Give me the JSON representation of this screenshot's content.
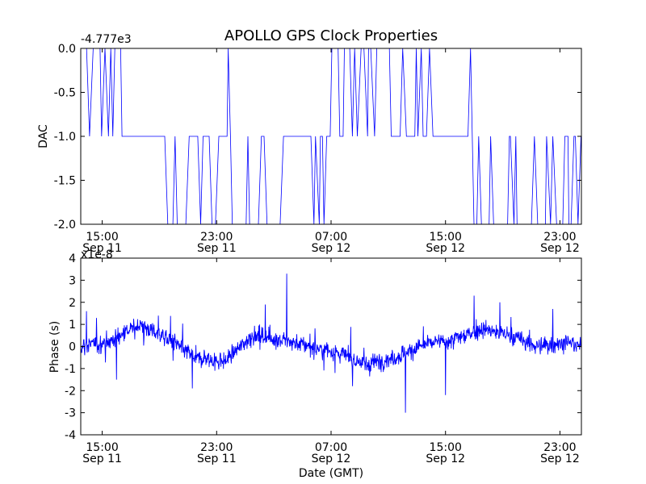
{
  "figure": {
    "title": "APOLLO GPS Clock Properties",
    "xlabel": "Date (GMT)"
  },
  "chart_data": [
    {
      "type": "line",
      "ylabel": "DAC",
      "offset_label": "-4.777e3",
      "ylim": [
        -2.0,
        0.0
      ],
      "xlim_hours": [
        -1.5,
        33.5
      ],
      "x_ticks": [
        {
          "hour": 0,
          "time": "15:00",
          "date": "Sep 11"
        },
        {
          "hour": 8,
          "time": "23:00",
          "date": "Sep 11"
        },
        {
          "hour": 16,
          "time": "07:00",
          "date": "Sep 12"
        },
        {
          "hour": 24,
          "time": "15:00",
          "date": "Sep 12"
        },
        {
          "hour": 32,
          "time": "23:00",
          "date": "Sep 12"
        }
      ],
      "y_ticks": [
        "0.0",
        "-0.5",
        "-1.0",
        "-1.5",
        "-2.0"
      ],
      "color": "#0000ff",
      "levels": [
        0.0,
        -1.0,
        -2.0
      ],
      "state_segments": [
        {
          "from": -1.5,
          "to": 1.5,
          "state": "upper",
          "level": 0.0
        },
        {
          "from": 1.5,
          "to": 9.0,
          "state": "middle",
          "level": -1.0
        },
        {
          "from": 9.0,
          "to": 12.5,
          "state": "lower",
          "level": -2.0
        },
        {
          "from": 12.5,
          "to": 16.0,
          "state": "middle",
          "level": -1.0
        },
        {
          "from": 16.0,
          "to": 20.2,
          "state": "upper",
          "level": 0.0
        },
        {
          "from": 20.2,
          "to": 25.8,
          "state": "middle",
          "level": -1.0
        },
        {
          "from": 25.8,
          "to": 33.5,
          "state": "lower",
          "level": -2.0
        }
      ],
      "upper_burst_ranges": [
        [
          -1.5,
          1.5
        ],
        [
          7.8,
          10.0
        ],
        [
          21.0,
          23.2
        ],
        [
          25.5,
          26.3
        ]
      ],
      "lower_burst_ranges": [
        [
          4.5,
          8.2
        ],
        [
          14.5,
          17.8
        ],
        [
          28.3,
          29.8
        ],
        [
          31.0,
          33.5
        ]
      ]
    },
    {
      "type": "line",
      "ylabel": "Phase (s)",
      "offset_label": "x1e-8",
      "ylim": [
        -4,
        4
      ],
      "xlim_hours": [
        -1.5,
        33.5
      ],
      "x_ticks": [
        {
          "hour": 0,
          "time": "15:00",
          "date": "Sep 11"
        },
        {
          "hour": 8,
          "time": "23:00",
          "date": "Sep 11"
        },
        {
          "hour": 16,
          "time": "07:00",
          "date": "Sep 12"
        },
        {
          "hour": 24,
          "time": "15:00",
          "date": "Sep 12"
        },
        {
          "hour": 32,
          "time": "23:00",
          "date": "Sep 12"
        }
      ],
      "y_ticks": [
        "4",
        "3",
        "2",
        "1",
        "0",
        "-1",
        "-2",
        "-3",
        "-4"
      ],
      "color": "#0000ff",
      "baseline_hours": [
        -1.5,
        0.5,
        2.5,
        4.5,
        6.5,
        8.5,
        10.5,
        12.5,
        14.5,
        16.5,
        18.5,
        20.5,
        22.5,
        24.5,
        26.5,
        28.5,
        30.5,
        32.5,
        33.5
      ],
      "baseline_values": [
        0.0,
        0.2,
        1.0,
        0.4,
        -0.5,
        -0.7,
        0.5,
        0.3,
        0.0,
        -0.3,
        -0.8,
        -0.5,
        0.1,
        0.3,
        0.8,
        0.5,
        0.0,
        0.2,
        0.0
      ],
      "spikes": [
        {
          "hour": -1.1,
          "value": 1.6
        },
        {
          "hour": 1.0,
          "value": -1.5
        },
        {
          "hour": 6.3,
          "value": -1.9
        },
        {
          "hour": 11.4,
          "value": 1.9
        },
        {
          "hour": 12.9,
          "value": 3.3
        },
        {
          "hour": 17.5,
          "value": -1.8
        },
        {
          "hour": 21.2,
          "value": -3.0
        },
        {
          "hour": 24.0,
          "value": -2.2
        },
        {
          "hour": 26.0,
          "value": 2.3
        },
        {
          "hour": 27.8,
          "value": 2.0
        },
        {
          "hour": 31.5,
          "value": 1.7
        }
      ]
    }
  ]
}
